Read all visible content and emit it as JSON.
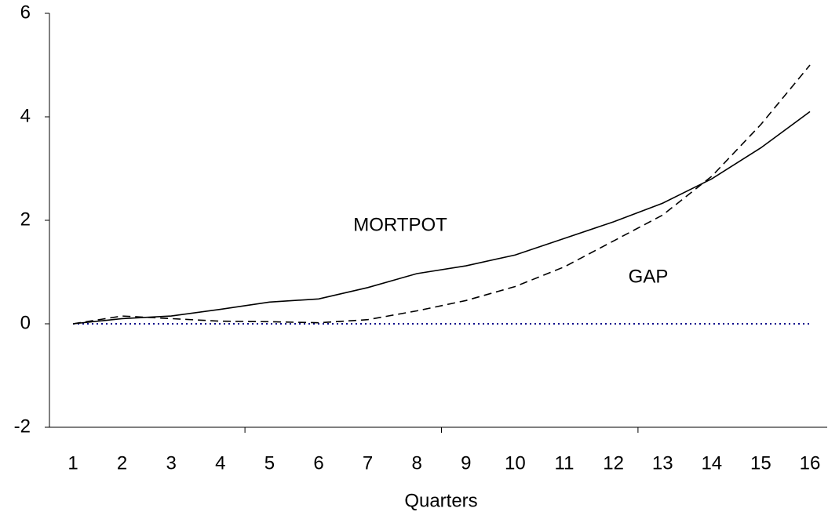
{
  "chart_data": {
    "type": "line",
    "x_label": "Quarters",
    "categories": [
      "1",
      "2",
      "3",
      "4",
      "5",
      "6",
      "7",
      "8",
      "9",
      "10",
      "11",
      "12",
      "13",
      "14",
      "15",
      "16"
    ],
    "series": [
      {
        "name": "MORTPOT",
        "color": "#000000",
        "style": "solid",
        "values": [
          0,
          0.1,
          0.15,
          0.28,
          0.42,
          0.48,
          0.7,
          0.97,
          1.12,
          1.33,
          1.65,
          1.97,
          2.33,
          2.8,
          3.4,
          4.1
        ]
      },
      {
        "name": "GAP",
        "color": "#000000",
        "style": "dashed",
        "values": [
          0,
          0.15,
          0.1,
          0.05,
          0.04,
          0.02,
          0.08,
          0.25,
          0.45,
          0.72,
          1.1,
          1.6,
          2.1,
          2.85,
          3.85,
          5.0
        ]
      },
      {
        "color": "#00008b",
        "style": "dotted",
        "values": [
          0,
          0,
          0,
          0,
          0,
          0,
          0,
          0,
          0,
          0,
          0,
          0,
          0,
          0,
          0,
          0
        ]
      }
    ],
    "ylim": [
      -2,
      6
    ],
    "yticks": [
      -2,
      0,
      2,
      4,
      6
    ],
    "grid": false
  }
}
